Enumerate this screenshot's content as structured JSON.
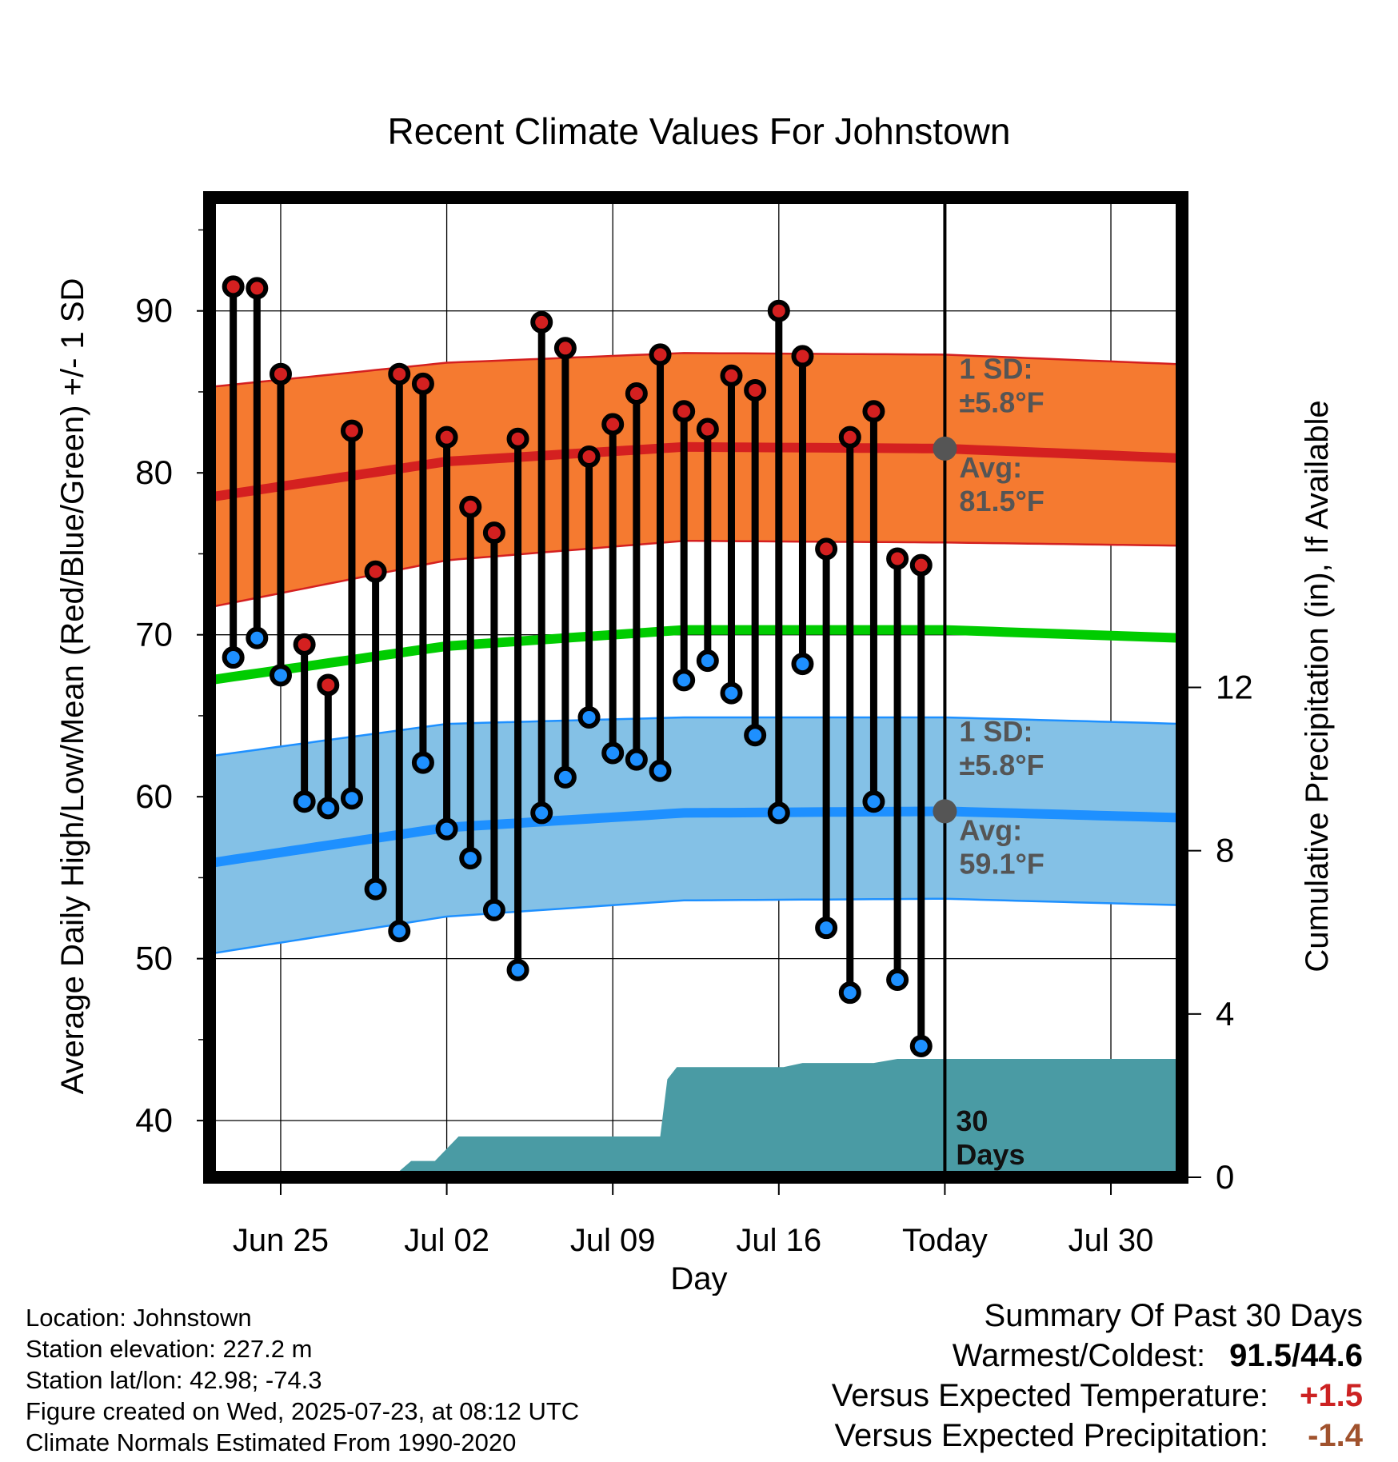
{
  "chart_data": {
    "type": "line",
    "title": "Recent Climate Values For Johnstown",
    "xlabel": "Day",
    "ylabel": "Average Daily High/Low/Mean (Red/Blue/Green) +/- 1 SD",
    "ylabel_right": "Cumulative Precipitation (in), If Available",
    "x_tick_labels": [
      "Jun 25",
      "Jul 02",
      "Jul 09",
      "Jul 16",
      "Today",
      "Jul 30"
    ],
    "x_tick_days": [
      3,
      10,
      17,
      24,
      31,
      38
    ],
    "xlim_days": [
      0,
      41
    ],
    "ylim": [
      36.5,
      97
    ],
    "y_ticks": [
      40,
      50,
      60,
      70,
      80,
      90
    ],
    "ylim_right": [
      0,
      24
    ],
    "y_ticks_right": [
      0,
      4,
      8,
      12
    ],
    "grid": true,
    "today_day": 31,
    "colors": {
      "high": "#d42020",
      "low": "#1e90ff",
      "mean": "#00cc00",
      "high_band": "#f57a30",
      "low_band": "#84c1e6",
      "precip": "#4a9ba4",
      "avg_marker": "#555555"
    },
    "daily": {
      "days": [
        1,
        2,
        3,
        4,
        5,
        6,
        7,
        8,
        9,
        10,
        11,
        12,
        13,
        14,
        15,
        16,
        17,
        18,
        19,
        20,
        21,
        22,
        23,
        24,
        25,
        26,
        27,
        28,
        29
      ],
      "highs": [
        91.5,
        91.4,
        86.1,
        69.4,
        66.9,
        82.6,
        73.9,
        86.1,
        85.5,
        82.2,
        77.9,
        76.3,
        82.1,
        89.3,
        87.7,
        81.0,
        83.0,
        84.9,
        87.3,
        83.8,
        82.7,
        86.0,
        85.1,
        90.0,
        87.2,
        75.3,
        82.2,
        83.8,
        74.7
      ],
      "lows": [
        68.6,
        69.8,
        67.5,
        59.7,
        59.3,
        59.9,
        54.3,
        51.7,
        62.1,
        58.0,
        56.2,
        53.0,
        49.3,
        59.0,
        61.2,
        64.9,
        62.7,
        62.3,
        61.6,
        67.2,
        68.4,
        66.4,
        63.8,
        59.0,
        68.2,
        51.9,
        47.9,
        59.7,
        48.7
      ]
    },
    "extra_high": {
      "day": 30,
      "value": 74.3
    },
    "extra_low": {
      "day": 30,
      "value": 44.6
    },
    "normals": {
      "days": [
        0,
        10,
        20,
        31,
        41
      ],
      "high_avg": [
        78.5,
        80.7,
        81.6,
        81.5,
        80.9
      ],
      "high_upper": [
        85.3,
        86.8,
        87.4,
        87.3,
        86.7
      ],
      "high_lower": [
        71.7,
        74.6,
        75.8,
        75.7,
        75.5
      ],
      "mean": [
        67.2,
        69.3,
        70.3,
        70.3,
        69.8
      ],
      "low_avg": [
        55.9,
        58.1,
        59.0,
        59.1,
        58.7
      ],
      "low_upper": [
        62.5,
        64.5,
        64.9,
        64.9,
        64.5
      ],
      "low_lower": [
        50.3,
        52.6,
        53.6,
        53.7,
        53.3
      ]
    },
    "precip_cumulative": [
      [
        0,
        0
      ],
      [
        7.7,
        0
      ],
      [
        8.5,
        0.4
      ],
      [
        9.5,
        0.4
      ],
      [
        10.5,
        1.0
      ],
      [
        19,
        1.0
      ],
      [
        19.3,
        2.4
      ],
      [
        19.7,
        2.7
      ],
      [
        23,
        2.7
      ],
      [
        24.2,
        2.7
      ],
      [
        25,
        2.8
      ],
      [
        28,
        2.8
      ],
      [
        29,
        2.9
      ],
      [
        41,
        2.9
      ]
    ],
    "annotations": {
      "high_sd": "1 SD:",
      "high_sd_value": "±5.8°F",
      "high_avg": "Avg:",
      "high_avg_value": "81.5°F",
      "low_sd": "1 SD:",
      "low_sd_value": "±5.8°F",
      "low_avg": "Avg:",
      "low_avg_value": "59.1°F",
      "window_number": "30",
      "window_unit": "Days"
    }
  },
  "info": {
    "location": "Location: Johnstown",
    "elevation": "Station elevation: 227.2 m",
    "latlon": "Station lat/lon: 42.98; -74.3",
    "created": "Figure created on Wed, 2025-07-23, at 08:12 UTC",
    "normals": "Climate Normals Estimated From 1990-2020"
  },
  "summary": {
    "title": "Summary Of Past 30 Days",
    "warmest_label": "Warmest/Coldest:",
    "warmest_value": "91.5/44.6",
    "temp_label": "Versus Expected Temperature:",
    "temp_value": "+1.5",
    "temp_color": "#cc2222",
    "precip_label": "Versus Expected Precipitation:",
    "precip_value": "-1.4",
    "precip_color": "#a0522d"
  }
}
